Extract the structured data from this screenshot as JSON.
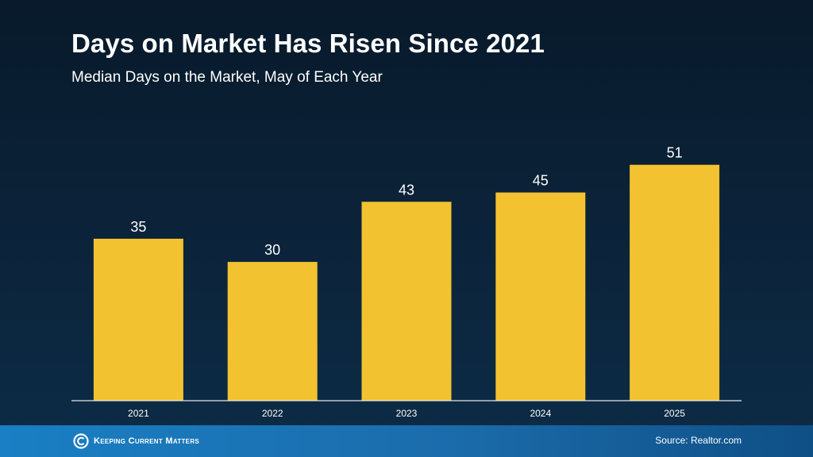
{
  "title": "Days on Market Has Risen Since 2021",
  "subtitle": "Median Days on the Market, May of Each Year",
  "chart_data": {
    "type": "bar",
    "categories": [
      "2021",
      "2022",
      "2023",
      "2024",
      "2025"
    ],
    "values": [
      35,
      30,
      43,
      45,
      51
    ],
    "ylim": [
      0,
      60
    ],
    "xlabel": "",
    "ylabel": "",
    "bar_color": "#f2c230",
    "grid": false
  },
  "footer": {
    "logo_text": "Keeping Current Matters",
    "source": "Source: Realtor.com"
  },
  "colors": {
    "background_top": "#081a2b",
    "background_bottom": "#0d2c47",
    "footer_bar": "#1a7fc4",
    "axis_line": "#e6e6e6"
  }
}
